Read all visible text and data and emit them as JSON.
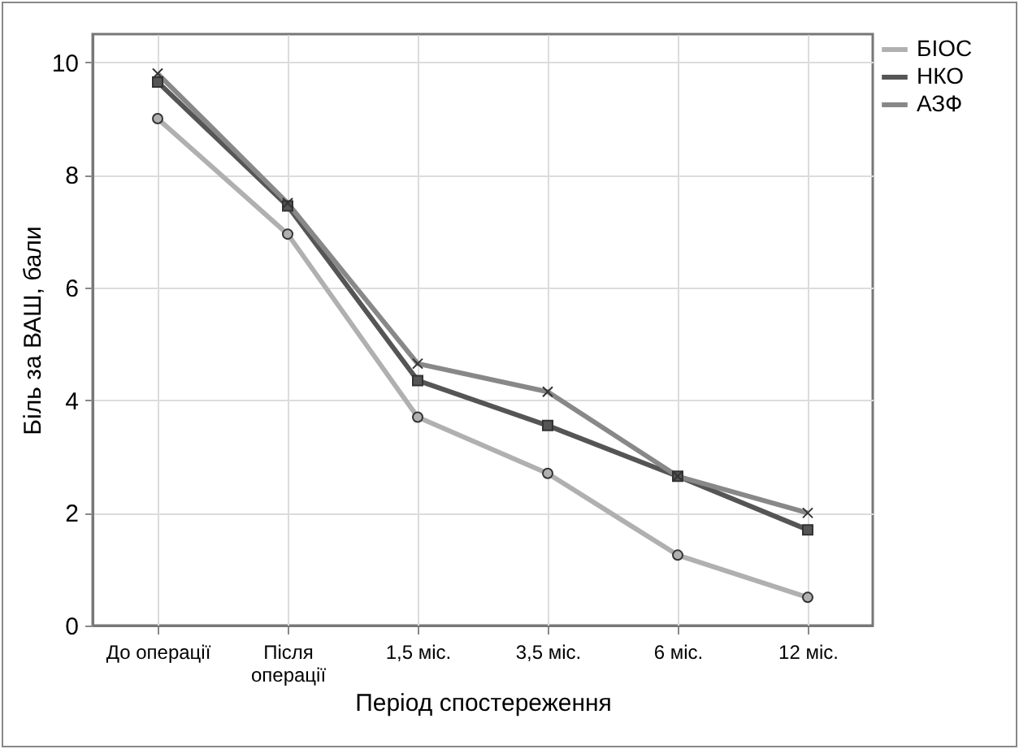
{
  "chart_data": {
    "type": "line",
    "xlabel": "Період спостереження",
    "ylabel": "Біль за ВАШ, бали",
    "categories": [
      "До операції",
      "Після\nоперації",
      "1,5 міс.",
      "3,5 міс.",
      "6 міс.",
      "12 міс."
    ],
    "series": [
      {
        "name": "БІОС",
        "color": "#b0b0b0",
        "marker": "circle",
        "values": [
          9.0,
          6.95,
          3.7,
          2.7,
          1.25,
          0.5
        ]
      },
      {
        "name": "НКО",
        "color": "#555555",
        "marker": "square",
        "values": [
          9.65,
          7.45,
          4.35,
          3.55,
          2.65,
          1.7
        ]
      },
      {
        "name": "АЗФ",
        "color": "#888888",
        "marker": "cross",
        "values": [
          9.8,
          7.5,
          4.65,
          4.15,
          2.65,
          2.0
        ]
      }
    ],
    "ylim": [
      0,
      10.5
    ],
    "yticks": [
      0,
      2,
      4,
      6,
      8,
      10
    ],
    "grid": true,
    "legend": "top right",
    "line_style": "solid"
  }
}
